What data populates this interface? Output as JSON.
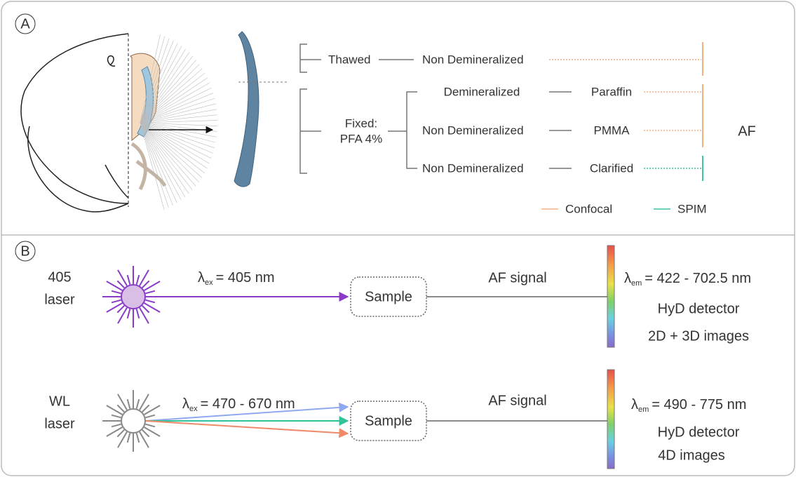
{
  "panel_a": {
    "label": "A",
    "thawed": "Thawed",
    "thawed_treatment": "Non Demineralized",
    "fixed": [
      "Fixed:",
      "PFA 4%"
    ],
    "fixed_rows": [
      {
        "treatment": "Demineralized",
        "embedding": "Paraffin"
      },
      {
        "treatment": "Non Demineralized",
        "embedding": "PMMA"
      },
      {
        "treatment": "Non Demineralized",
        "embedding": "Clarified"
      }
    ],
    "result": "AF",
    "legend": [
      {
        "name": "Confocal",
        "color": "#f4b183"
      },
      {
        "name": "SPIM",
        "color": "#3cc4a8"
      }
    ]
  },
  "panel_b": {
    "label": "B",
    "rows": [
      {
        "source": [
          "405",
          "laser"
        ],
        "excitation": {
          "symbol": "λ",
          "sub": "ex",
          "text": "= 405 nm"
        },
        "sample": "Sample",
        "signal": "AF signal",
        "emission": {
          "symbol": "λ",
          "sub": "em",
          "text": "= 422 - 702.5 nm"
        },
        "detector": "HyD detector",
        "images": "2D + 3D images"
      },
      {
        "source": [
          "WL",
          "laser"
        ],
        "excitation": {
          "symbol": "λ",
          "sub": "ex",
          "text": "= 470 - 670 nm"
        },
        "sample": "Sample",
        "signal": "AF signal",
        "emission": {
          "symbol": "λ",
          "sub": "em",
          "text": "= 490 - 775 nm"
        },
        "detector": "HyD detector",
        "images": "4D images"
      }
    ]
  }
}
